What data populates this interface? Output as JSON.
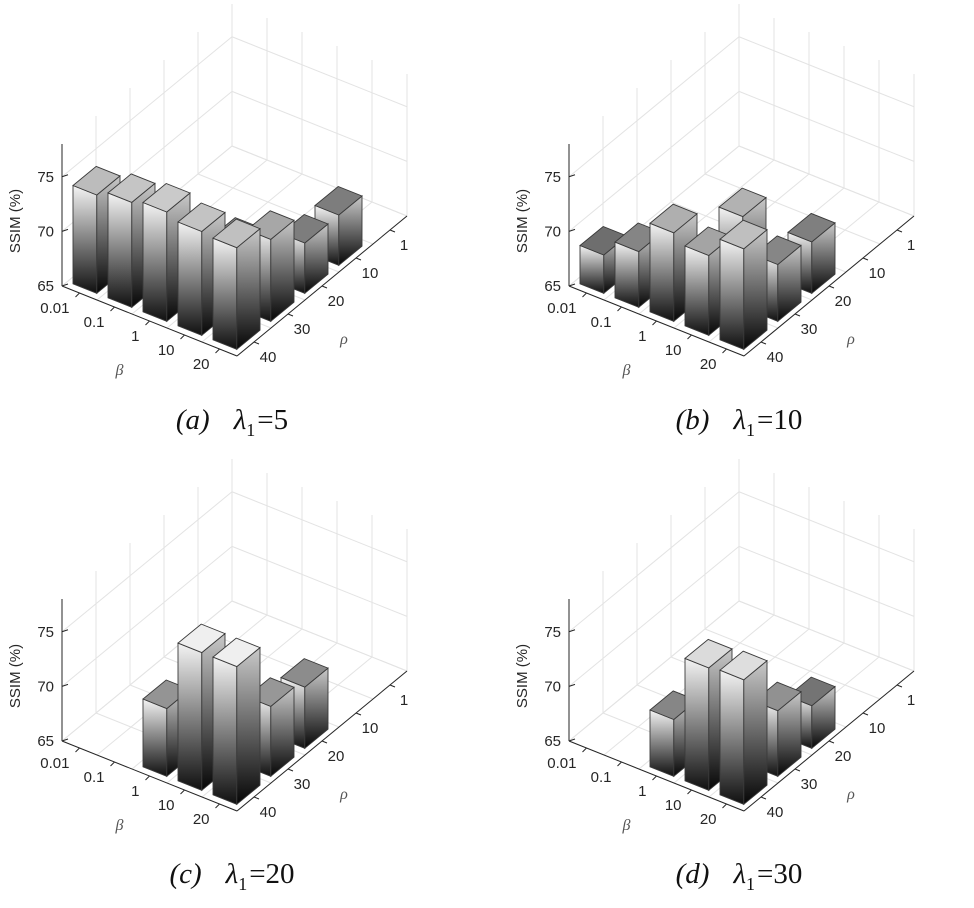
{
  "chart_data": [
    {
      "type": "bar3d",
      "caption": {
        "label": "(a)",
        "symbol": "λ",
        "subscript": "1",
        "relation": "=",
        "value": "5"
      },
      "zlabel": "SSIM (%)",
      "xlabel": "β",
      "ylabel": "ρ",
      "zlim": [
        65,
        78
      ],
      "zticks": [
        "65",
        "70",
        "75"
      ],
      "beta_ticks": [
        "0.01",
        "0.1",
        "1",
        "10",
        "20"
      ],
      "rho_ticks": [
        "1",
        "10",
        "20",
        "30",
        "40"
      ],
      "grid": true,
      "bars": [
        {
          "beta": "0.01",
          "rho": "40",
          "value": 74.0
        },
        {
          "beta": "0.1",
          "rho": "40",
          "value": 74.6
        },
        {
          "beta": "1",
          "rho": "40",
          "value": 75.0
        },
        {
          "beta": "10",
          "rho": "40",
          "value": 74.5
        },
        {
          "beta": "20",
          "rho": "40",
          "value": 74.3
        },
        {
          "beta": "10",
          "rho": "30",
          "value": 70.6
        },
        {
          "beta": "20",
          "rho": "30",
          "value": 72.5
        },
        {
          "beta": "20",
          "rho": "20",
          "value": 69.6
        },
        {
          "beta": "20",
          "rho": "10",
          "value": 69.6
        }
      ]
    },
    {
      "type": "bar3d",
      "caption": {
        "label": "(b)",
        "symbol": "λ",
        "subscript": "1",
        "relation": "=",
        "value": "10"
      },
      "zlabel": "SSIM (%)",
      "xlabel": "β",
      "ylabel": "ρ",
      "zlim": [
        65,
        78
      ],
      "zticks": [
        "65",
        "70",
        "75"
      ],
      "beta_ticks": [
        "0.01",
        "0.1",
        "1",
        "10",
        "20"
      ],
      "rho_ticks": [
        "1",
        "10",
        "20",
        "30",
        "40"
      ],
      "grid": true,
      "bars": [
        {
          "beta": "0.01",
          "rho": "40",
          "value": 68.5
        },
        {
          "beta": "0.1",
          "rho": "40",
          "value": 70.1
        },
        {
          "beta": "1",
          "rho": "40",
          "value": 73.1
        },
        {
          "beta": "10",
          "rho": "40",
          "value": 72.3
        },
        {
          "beta": "20",
          "rho": "40",
          "value": 74.2
        },
        {
          "beta": "1",
          "rho": "30",
          "value": 66.2
        },
        {
          "beta": "10",
          "rho": "30",
          "value": 73.3
        },
        {
          "beta": "20",
          "rho": "30",
          "value": 70.2
        },
        {
          "beta": "20",
          "rho": "20",
          "value": 69.7
        }
      ]
    },
    {
      "type": "bar3d",
      "caption": {
        "label": "(c)",
        "symbol": "λ",
        "subscript": "1",
        "relation": "=",
        "value": "20"
      },
      "zlabel": "SSIM (%)",
      "xlabel": "β",
      "ylabel": "ρ",
      "zlim": [
        65,
        78
      ],
      "zticks": [
        "65",
        "70",
        "75"
      ],
      "beta_ticks": [
        "0.01",
        "0.1",
        "1",
        "10",
        "20"
      ],
      "rho_ticks": [
        "1",
        "10",
        "20",
        "30",
        "40"
      ],
      "grid": true,
      "bars": [
        {
          "beta": "1",
          "rho": "40",
          "value": 71.2
        },
        {
          "beta": "10",
          "rho": "40",
          "value": 77.6
        },
        {
          "beta": "20",
          "rho": "40",
          "value": 77.6
        },
        {
          "beta": "10",
          "rho": "30",
          "value": 65.7
        },
        {
          "beta": "20",
          "rho": "30",
          "value": 71.4
        },
        {
          "beta": "20",
          "rho": "20",
          "value": 70.6
        }
      ]
    },
    {
      "type": "bar3d",
      "caption": {
        "label": "(d)",
        "symbol": "λ",
        "subscript": "1",
        "relation": "=",
        "value": "30"
      },
      "zlabel": "SSIM (%)",
      "xlabel": "β",
      "ylabel": "ρ",
      "zlim": [
        65,
        78
      ],
      "zticks": [
        "65",
        "70",
        "75"
      ],
      "beta_ticks": [
        "0.01",
        "0.1",
        "1",
        "10",
        "20"
      ],
      "rho_ticks": [
        "1",
        "10",
        "20",
        "30",
        "40"
      ],
      "grid": true,
      "bars": [
        {
          "beta": "1",
          "rho": "40",
          "value": 70.2
        },
        {
          "beta": "10",
          "rho": "40",
          "value": 76.2
        },
        {
          "beta": "20",
          "rho": "40",
          "value": 76.4
        },
        {
          "beta": "20",
          "rho": "30",
          "value": 71.0
        },
        {
          "beta": "20",
          "rho": "20",
          "value": 68.9
        }
      ]
    }
  ]
}
